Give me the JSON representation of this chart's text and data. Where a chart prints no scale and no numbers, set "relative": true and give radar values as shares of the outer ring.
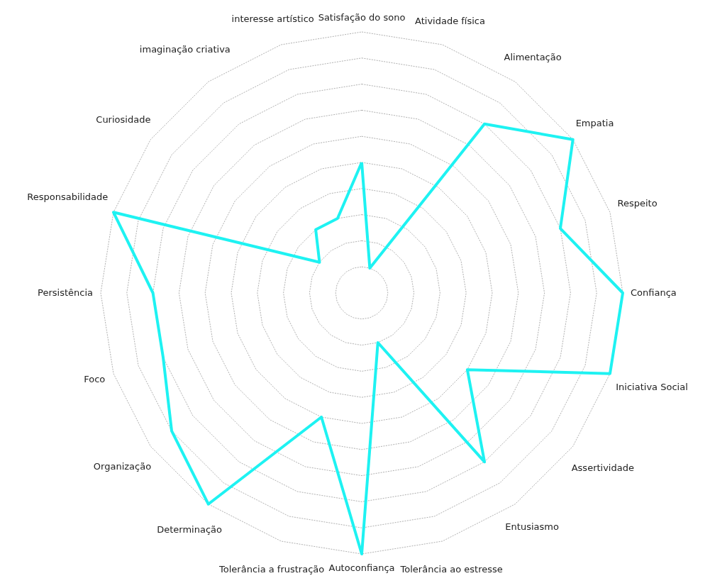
{
  "chart_data": {
    "type": "radar",
    "relative": true,
    "grid": true,
    "categories": [
      "Satisfação do sono",
      "Atividade física",
      "Alimentação",
      "Empatia",
      "Respeito",
      "Confiança",
      "Iniciativa Social",
      "Assertividade",
      "Entusiasmo",
      "Tolerância ao estresse",
      "Autoconfiança",
      "Tolerância a frustração",
      "Determinação",
      "Organização",
      "Foco",
      "Persistência",
      "Responsabilidade",
      "Curiosidade",
      "imaginação criativa",
      "interesse artístico"
    ],
    "series": [
      {
        "color": "#1ef2f2",
        "values": [
          0.5,
          0.1,
          0.8,
          1.0,
          0.8,
          1.0,
          1.0,
          0.5,
          0.8,
          0.2,
          1.0,
          0.5,
          1.0,
          0.9,
          0.8,
          0.8,
          1.0,
          0.2,
          0.3,
          0.3
        ]
      }
    ]
  }
}
